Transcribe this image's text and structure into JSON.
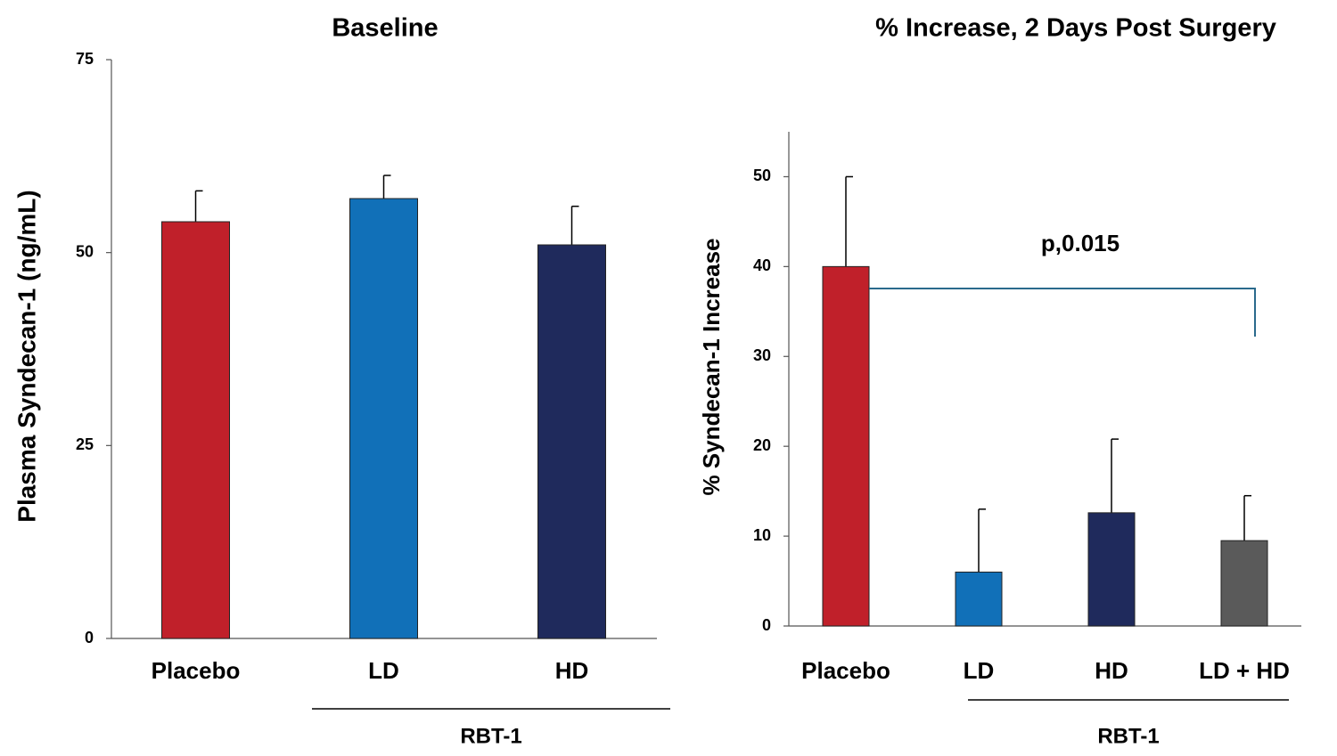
{
  "chart_data": [
    {
      "type": "bar",
      "title": "Baseline",
      "ylabel": "Plasma Syndecan-1 (ng/mL)",
      "categories": [
        "Placebo",
        "LD",
        "HD"
      ],
      "values": [
        54,
        57,
        51
      ],
      "errors": [
        4,
        3,
        5
      ],
      "colors": [
        "#c0202a",
        "#1170b8",
        "#1f2a5c"
      ],
      "ylim": [
        0,
        75
      ],
      "yticks": [
        0,
        25,
        50,
        75
      ],
      "group_label": "RBT-1"
    },
    {
      "type": "bar",
      "title": "% Increase, 2 Days Post Surgery",
      "ylabel": "% Syndecan-1 Increase",
      "categories": [
        "Placebo",
        "LD",
        "HD",
        "LD + HD"
      ],
      "values": [
        40,
        6,
        12.6,
        9.5
      ],
      "errors": [
        10,
        7,
        8.2,
        5
      ],
      "colors": [
        "#c0202a",
        "#1170b8",
        "#1f2a5c",
        "#5a5a5a"
      ],
      "ylim": [
        0,
        55
      ],
      "yticks": [
        0,
        10,
        20,
        30,
        40,
        50
      ],
      "group_label": "RBT-1",
      "annotation": "p,0.015"
    }
  ]
}
